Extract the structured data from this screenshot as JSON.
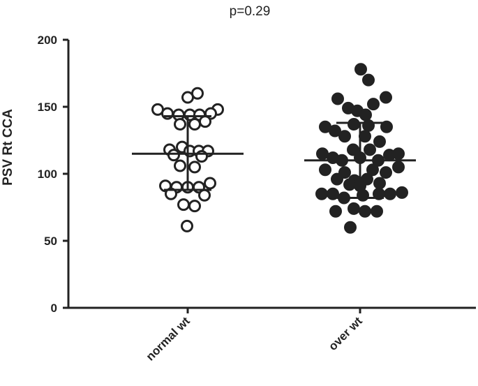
{
  "chart_data": {
    "type": "scatter",
    "annotation": "p=0.29",
    "ylabel": "PSV Rt CCA",
    "xlabel": "",
    "ylim": [
      0,
      200
    ],
    "yticks": [
      0,
      50,
      100,
      150,
      200
    ],
    "grid": false,
    "legend": "none",
    "categories": [
      "normal wt",
      "over wt"
    ],
    "series": [
      {
        "category": "normal wt",
        "marker": "open-circle",
        "color": "#222222",
        "mean": 115,
        "error_low": 88,
        "error_high": 143,
        "points": [
          {
            "x": -0.43,
            "y": 148
          },
          {
            "x": 0.43,
            "y": 148
          },
          {
            "x": -0.29,
            "y": 145
          },
          {
            "x": -0.13,
            "y": 144
          },
          {
            "x": 0.03,
            "y": 144
          },
          {
            "x": 0.17,
            "y": 144
          },
          {
            "x": 0.33,
            "y": 145
          },
          {
            "x": 0.14,
            "y": 160
          },
          {
            "x": 0.0,
            "y": 157
          },
          {
            "x": -0.11,
            "y": 137
          },
          {
            "x": 0.1,
            "y": 137
          },
          {
            "x": 0.25,
            "y": 139
          },
          {
            "x": -0.26,
            "y": 118
          },
          {
            "x": -0.08,
            "y": 120
          },
          {
            "x": 0.03,
            "y": 117
          },
          {
            "x": 0.16,
            "y": 117
          },
          {
            "x": 0.29,
            "y": 117
          },
          {
            "x": -0.2,
            "y": 114
          },
          {
            "x": 0.2,
            "y": 113
          },
          {
            "x": -0.11,
            "y": 106
          },
          {
            "x": 0.1,
            "y": 105
          },
          {
            "x": -0.32,
            "y": 91
          },
          {
            "x": -0.16,
            "y": 90
          },
          {
            "x": 0.0,
            "y": 90
          },
          {
            "x": 0.16,
            "y": 90
          },
          {
            "x": 0.32,
            "y": 93
          },
          {
            "x": -0.24,
            "y": 85
          },
          {
            "x": 0.24,
            "y": 84
          },
          {
            "x": -0.06,
            "y": 77
          },
          {
            "x": 0.1,
            "y": 76
          },
          {
            "x": -0.01,
            "y": 61
          }
        ]
      },
      {
        "category": "over wt",
        "marker": "filled-circle",
        "color": "#222222",
        "mean": 110,
        "error_low": 82,
        "error_high": 138,
        "points": [
          {
            "x": 0.01,
            "y": 178
          },
          {
            "x": 0.12,
            "y": 170
          },
          {
            "x": -0.32,
            "y": 156
          },
          {
            "x": 0.19,
            "y": 152
          },
          {
            "x": 0.37,
            "y": 157
          },
          {
            "x": -0.17,
            "y": 149
          },
          {
            "x": -0.04,
            "y": 147
          },
          {
            "x": 0.08,
            "y": 144
          },
          {
            "x": -0.5,
            "y": 135
          },
          {
            "x": -0.36,
            "y": 132
          },
          {
            "x": -0.09,
            "y": 137
          },
          {
            "x": 0.12,
            "y": 136
          },
          {
            "x": 0.38,
            "y": 135
          },
          {
            "x": -0.22,
            "y": 128
          },
          {
            "x": 0.07,
            "y": 128
          },
          {
            "x": 0.28,
            "y": 124
          },
          {
            "x": -0.1,
            "y": 118
          },
          {
            "x": 0.14,
            "y": 118
          },
          {
            "x": -0.54,
            "y": 115
          },
          {
            "x": -0.39,
            "y": 112
          },
          {
            "x": -0.26,
            "y": 110
          },
          {
            "x": 0.0,
            "y": 112
          },
          {
            "x": 0.26,
            "y": 110
          },
          {
            "x": 0.42,
            "y": 114
          },
          {
            "x": 0.55,
            "y": 115
          },
          {
            "x": -0.5,
            "y": 103
          },
          {
            "x": -0.22,
            "y": 101
          },
          {
            "x": 0.18,
            "y": 103
          },
          {
            "x": 0.37,
            "y": 101
          },
          {
            "x": 0.55,
            "y": 105
          },
          {
            "x": -0.33,
            "y": 96
          },
          {
            "x": -0.08,
            "y": 95
          },
          {
            "x": 0.1,
            "y": 96
          },
          {
            "x": 0.28,
            "y": 93
          },
          {
            "x": -0.15,
            "y": 92
          },
          {
            "x": 0.0,
            "y": 91
          },
          {
            "x": -0.55,
            "y": 85
          },
          {
            "x": -0.39,
            "y": 85
          },
          {
            "x": -0.23,
            "y": 82
          },
          {
            "x": 0.04,
            "y": 84
          },
          {
            "x": 0.27,
            "y": 85
          },
          {
            "x": 0.43,
            "y": 85
          },
          {
            "x": 0.6,
            "y": 86
          },
          {
            "x": -0.35,
            "y": 72
          },
          {
            "x": -0.09,
            "y": 74
          },
          {
            "x": 0.07,
            "y": 72
          },
          {
            "x": 0.24,
            "y": 72
          },
          {
            "x": -0.14,
            "y": 60
          }
        ]
      }
    ]
  }
}
